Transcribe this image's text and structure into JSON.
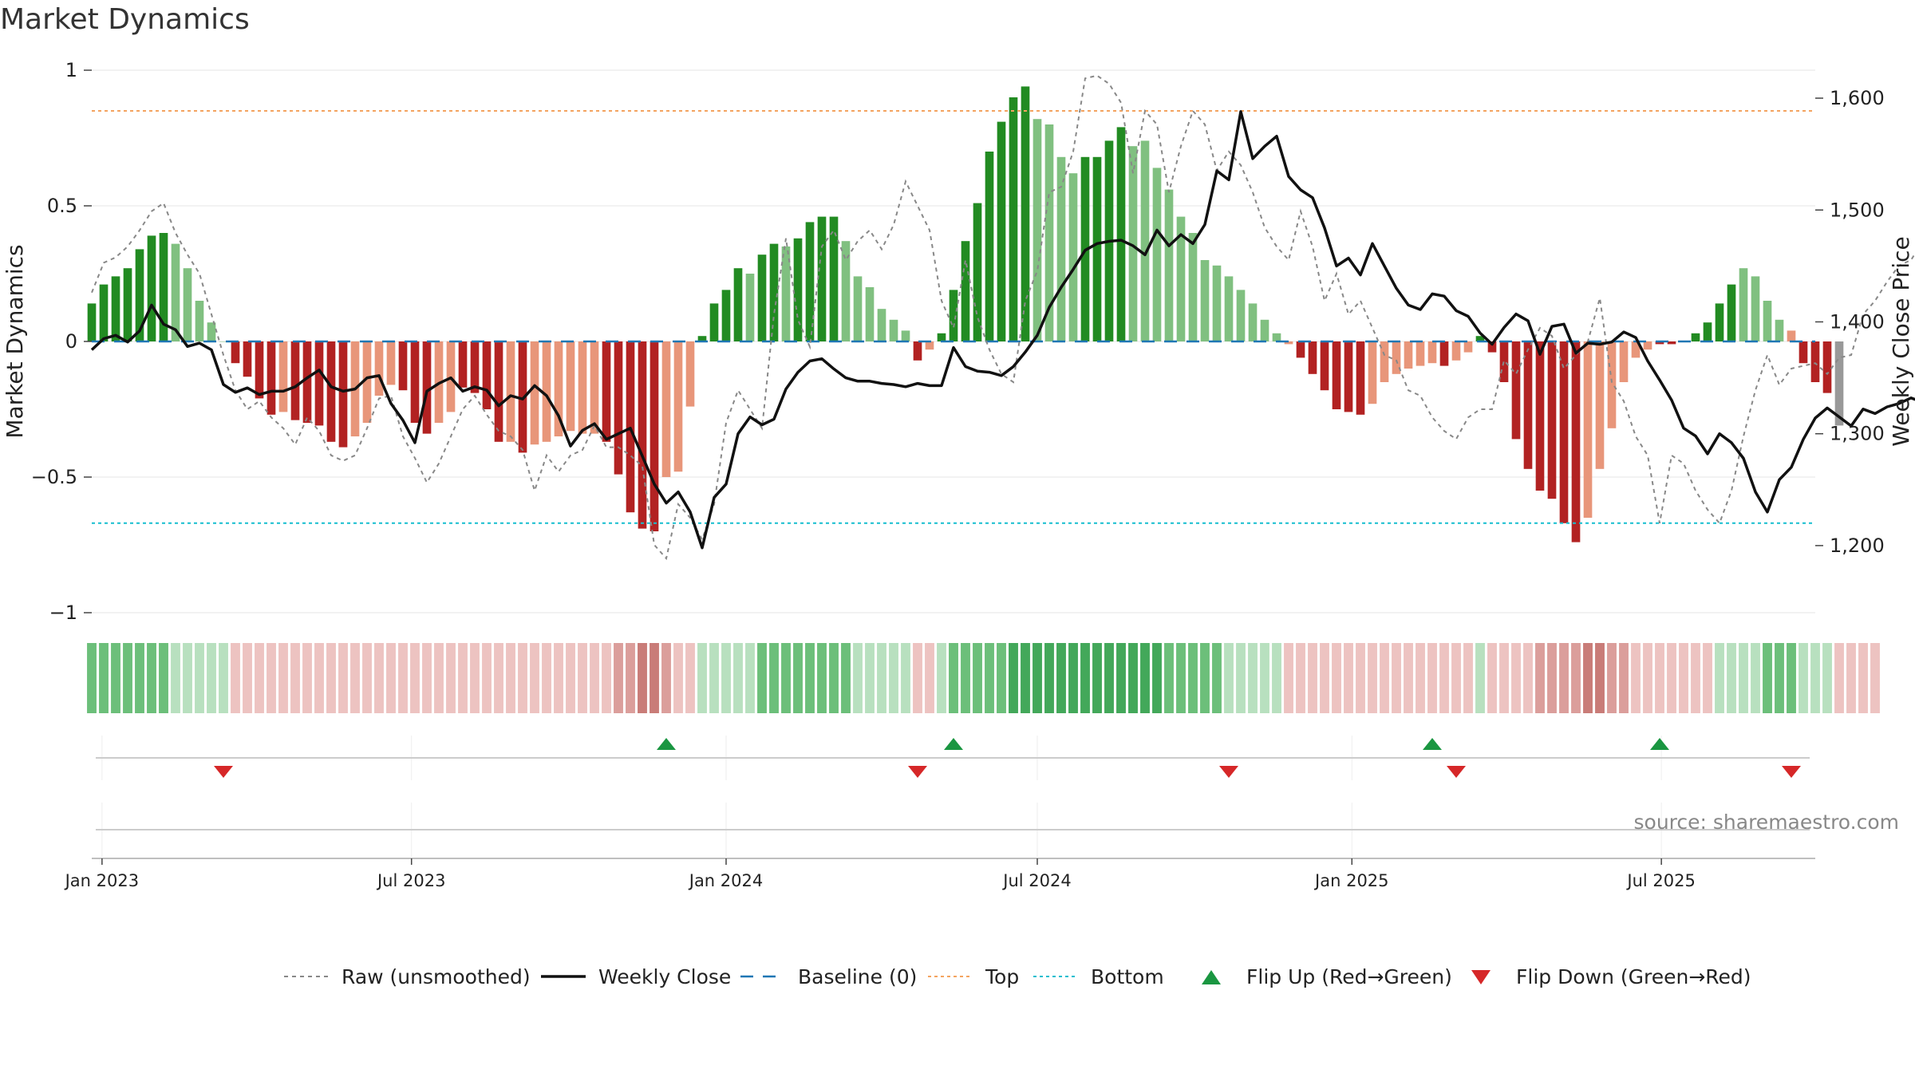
{
  "title": "Market Dynamics",
  "source": "source: sharemaestro.com",
  "colors": {
    "strong_green": "#228B22",
    "light_green": "#80C080",
    "strong_red": "#B22222",
    "light_red": "#E8967A",
    "price_line": "#111111",
    "raw_line": "#888888",
    "baseline": "#1F77B4",
    "top": "#F4A460",
    "bottom": "#17BECF",
    "flip_up": "#1A9641",
    "flip_down": "#D62728"
  },
  "chart_data": {
    "type": "bar",
    "title": "Market Dynamics",
    "ylabel": "Market Dynamics",
    "y2label": "Weekly Close Price",
    "ylim": [
      -1,
      1
    ],
    "y2lim": [
      1140,
      1625
    ],
    "yticks": [
      1,
      0.5,
      0,
      -0.5,
      -1
    ],
    "ytick_labels": [
      "1",
      "0.5",
      "0",
      "−0.5",
      "−1"
    ],
    "y2ticks": [
      1600,
      1500,
      1400,
      1300,
      1200
    ],
    "y2tick_labels": [
      "1,600",
      "1,500",
      "1,400",
      "1,300",
      "1,200"
    ],
    "x_start": "2022-12-26",
    "x_end": "2025-09-29",
    "xticks": [
      "2023-01-01",
      "2023-07-01",
      "2024-01-01",
      "2024-07-01",
      "2025-01-01",
      "2025-07-01"
    ],
    "xtick_labels": [
      "Jan 2023",
      "Jul 2023",
      "Jan 2024",
      "Jul 2024",
      "Jan 2025",
      "Jul 2025"
    ],
    "top_level": 0.85,
    "bottom_level": -0.67,
    "baseline": 0,
    "grid": true,
    "legend_position": "bottom-center",
    "series": [
      {
        "name": "Raw (unsmoothed)",
        "values": [
          0.18,
          0.29,
          0.31,
          0.35,
          0.41,
          0.48,
          0.51,
          0.4,
          0.32,
          0.25,
          0.1,
          -0.05,
          -0.18,
          -0.25,
          -0.22,
          -0.28,
          -0.32,
          -0.38,
          -0.28,
          -0.33,
          -0.42,
          -0.44,
          -0.42,
          -0.32,
          -0.21,
          -0.2,
          -0.35,
          -0.43,
          -0.52,
          -0.45,
          -0.35,
          -0.25,
          -0.2,
          -0.27,
          -0.33,
          -0.35,
          -0.4,
          -0.55,
          -0.42,
          -0.48,
          -0.42,
          -0.4,
          -0.31,
          -0.39,
          -0.39,
          -0.42,
          -0.46,
          -0.75,
          -0.8,
          -0.6,
          -0.65,
          -0.73,
          -0.6,
          -0.3,
          -0.18,
          -0.25,
          -0.32,
          0.1,
          0.38,
          0.08,
          -0.02,
          0.35,
          0.41,
          0.3,
          0.37,
          0.41,
          0.34,
          0.43,
          0.59,
          0.5,
          0.41,
          0.15,
          0.05,
          0.3,
          0.09,
          -0.03,
          -0.12,
          -0.15,
          0.15,
          0.26,
          0.55,
          0.57,
          0.7,
          0.97,
          0.98,
          0.95,
          0.88,
          0.62,
          0.85,
          0.8,
          0.55,
          0.72,
          0.85,
          0.8,
          0.63,
          0.7,
          0.65,
          0.55,
          0.42,
          0.35,
          0.3,
          0.48,
          0.35,
          0.15,
          0.25,
          0.1,
          0.15,
          0.05,
          -0.05,
          -0.07,
          -0.18,
          -0.2,
          -0.28,
          -0.33,
          -0.36,
          -0.28,
          -0.25,
          -0.25,
          -0.07,
          -0.12,
          -0.03,
          0.05,
          0.02,
          -0.1,
          -0.05,
          0.0,
          0.16,
          -0.15,
          -0.22,
          -0.35,
          -0.42,
          -0.67,
          -0.42,
          -0.45,
          -0.55,
          -0.62,
          -0.67,
          -0.55,
          -0.35,
          -0.18,
          -0.05,
          -0.16,
          -0.1,
          -0.09,
          -0.08,
          -0.12,
          -0.06,
          -0.05,
          0.1,
          0.15,
          0.22,
          0.28,
          0.3,
          0.37,
          0.2,
          0.09,
          -0.08,
          0.05,
          -0.2,
          -0.27,
          -0.38,
          -0.3,
          -0.25
        ]
      },
      {
        "name": "Weekly Close",
        "values": [
          1375,
          1385,
          1388,
          1382,
          1392,
          1415,
          1398,
          1393,
          1378,
          1381,
          1375,
          1344,
          1337,
          1341,
          1335,
          1338,
          1338,
          1342,
          1350,
          1357,
          1342,
          1338,
          1340,
          1350,
          1352,
          1327,
          1312,
          1292,
          1338,
          1345,
          1350,
          1338,
          1342,
          1339,
          1325,
          1334,
          1331,
          1343,
          1334,
          1316,
          1289,
          1303,
          1309,
          1295,
          1300,
          1305,
          1280,
          1255,
          1238,
          1248,
          1230,
          1198,
          1243,
          1255,
          1300,
          1315,
          1308,
          1313,
          1340,
          1355,
          1365,
          1367,
          1358,
          1350,
          1347,
          1347,
          1345,
          1344,
          1342,
          1345,
          1343,
          1343,
          1377,
          1360,
          1356,
          1355,
          1352,
          1360,
          1373,
          1388,
          1413,
          1431,
          1447,
          1464,
          1470,
          1472,
          1473,
          1468,
          1460,
          1482,
          1468,
          1478,
          1470,
          1487,
          1535,
          1527,
          1588,
          1546,
          1557,
          1566,
          1530,
          1518,
          1511,
          1484,
          1450,
          1457,
          1442,
          1470,
          1450,
          1430,
          1415,
          1411,
          1425,
          1423,
          1410,
          1405,
          1390,
          1380,
          1395,
          1407,
          1401,
          1371,
          1396,
          1398,
          1372,
          1381,
          1380,
          1382,
          1391,
          1386,
          1365,
          1348,
          1330,
          1305,
          1298,
          1282,
          1300,
          1292,
          1278,
          1248,
          1230,
          1259,
          1270,
          1295,
          1314,
          1323,
          1315,
          1307,
          1322,
          1318,
          1324,
          1327,
          1332,
          1328,
          1335,
          1327,
          1330,
          1328,
          1337,
          1340,
          1338,
          1335,
          1339,
          1339,
          1331,
          1328,
          1335,
          1321
        ]
      },
      {
        "name": "Baseline (0)",
        "values": [
          0
        ]
      },
      {
        "name": "Top",
        "values": [
          0.85
        ]
      },
      {
        "name": "Bottom",
        "values": [
          -0.67
        ]
      },
      {
        "name": "Flip Up (Red→Green)",
        "x": [
          "2023-11-27",
          "2024-05-13",
          "2025-02-17",
          "2025-06-30"
        ]
      },
      {
        "name": "Flip Down (Green→Red)",
        "x": [
          "2023-03-13",
          "2024-04-22",
          "2024-10-21",
          "2025-03-03",
          "2025-09-15"
        ]
      }
    ],
    "bars": [
      0.14,
      0.21,
      0.24,
      0.27,
      0.34,
      0.39,
      0.4,
      0.36,
      0.27,
      0.15,
      0.07,
      0.0,
      -0.08,
      -0.13,
      -0.21,
      -0.27,
      -0.26,
      -0.29,
      -0.3,
      -0.31,
      -0.37,
      -0.39,
      -0.35,
      -0.3,
      -0.2,
      -0.16,
      -0.18,
      -0.3,
      -0.34,
      -0.3,
      -0.26,
      -0.17,
      -0.19,
      -0.25,
      -0.37,
      -0.37,
      -0.41,
      -0.38,
      -0.37,
      -0.35,
      -0.33,
      -0.34,
      -0.34,
      -0.37,
      -0.49,
      -0.63,
      -0.69,
      -0.7,
      -0.5,
      -0.48,
      -0.24,
      0.02,
      0.14,
      0.19,
      0.27,
      0.25,
      0.32,
      0.36,
      0.35,
      0.38,
      0.44,
      0.46,
      0.46,
      0.37,
      0.24,
      0.2,
      0.12,
      0.08,
      0.04,
      -0.07,
      -0.03,
      0.03,
      0.19,
      0.37,
      0.51,
      0.7,
      0.81,
      0.9,
      0.94,
      0.82,
      0.8,
      0.68,
      0.62,
      0.68,
      0.68,
      0.74,
      0.79,
      0.72,
      0.74,
      0.64,
      0.56,
      0.46,
      0.4,
      0.3,
      0.28,
      0.24,
      0.19,
      0.14,
      0.08,
      0.03,
      -0.01,
      -0.06,
      -0.12,
      -0.18,
      -0.25,
      -0.26,
      -0.27,
      -0.23,
      -0.15,
      -0.12,
      -0.1,
      -0.09,
      -0.08,
      -0.09,
      -0.07,
      -0.04,
      0.02,
      -0.04,
      -0.15,
      -0.36,
      -0.47,
      -0.55,
      -0.58,
      -0.67,
      -0.74,
      -0.65,
      -0.47,
      -0.32,
      -0.15,
      -0.06,
      -0.03,
      -0.01,
      -0.01,
      0.0,
      0.03,
      0.07,
      0.14,
      0.21,
      0.27,
      0.24,
      0.15,
      0.08,
      0.04,
      -0.08,
      -0.15,
      -0.19,
      -0.31
    ],
    "bar_colors": [
      "strong_green",
      "strong_green",
      "strong_green",
      "strong_green",
      "strong_green",
      "strong_green",
      "strong_green",
      "light_green",
      "light_green",
      "light_green",
      "light_green",
      "light_green",
      "strong_red",
      "strong_red",
      "strong_red",
      "strong_red",
      "light_red",
      "strong_red",
      "strong_red",
      "strong_red",
      "strong_red",
      "strong_red",
      "light_red",
      "light_red",
      "light_red",
      "light_red",
      "strong_red",
      "strong_red",
      "strong_red",
      "light_red",
      "light_red",
      "strong_red",
      "strong_red",
      "strong_red",
      "strong_red",
      "light_red",
      "strong_red",
      "light_red",
      "light_red",
      "light_red",
      "light_red",
      "light_red",
      "light_red",
      "strong_red",
      "strong_red",
      "strong_red",
      "strong_red",
      "strong_red",
      "light_red",
      "light_red",
      "light_red",
      "strong_green",
      "strong_green",
      "strong_green",
      "strong_green",
      "light_green",
      "strong_green",
      "strong_green",
      "light_green",
      "strong_green",
      "strong_green",
      "strong_green",
      "strong_green",
      "light_green",
      "light_green",
      "light_green",
      "light_green",
      "light_green",
      "light_green",
      "strong_red",
      "light_red",
      "strong_green",
      "strong_green",
      "strong_green",
      "strong_green",
      "strong_green",
      "strong_green",
      "strong_green",
      "strong_green",
      "light_green",
      "light_green",
      "light_green",
      "light_green",
      "strong_green",
      "strong_green",
      "strong_green",
      "strong_green",
      "light_green",
      "light_green",
      "light_green",
      "light_green",
      "light_green",
      "light_green",
      "light_green",
      "light_green",
      "light_green",
      "light_green",
      "light_green",
      "light_green",
      "light_green",
      "light_red",
      "strong_red",
      "strong_red",
      "strong_red",
      "strong_red",
      "strong_red",
      "strong_red",
      "light_red",
      "light_red",
      "light_red",
      "light_red",
      "light_red",
      "light_red",
      "strong_red",
      "light_red",
      "light_red",
      "strong_green",
      "strong_red",
      "strong_red",
      "strong_red",
      "strong_red",
      "strong_red",
      "strong_red",
      "strong_red",
      "strong_red",
      "light_red",
      "light_red",
      "light_red",
      "light_red",
      "light_red",
      "light_red",
      "strong_red",
      "strong_red",
      "strong_green",
      "strong_green",
      "strong_green",
      "strong_green",
      "strong_green",
      "light_green",
      "light_green",
      "light_green",
      "light_green",
      "light_red",
      "strong_red",
      "strong_red",
      "strong_red"
    ],
    "regime_strip": [
      2,
      2,
      2,
      2,
      2,
      2,
      2,
      1,
      1,
      1,
      1,
      1,
      -1,
      -1,
      -1,
      -1,
      -1,
      -1,
      -1,
      -1,
      -1,
      -1,
      -1,
      -1,
      -1,
      -1,
      -1,
      -1,
      -1,
      -1,
      -1,
      -1,
      -1,
      -1,
      -1,
      -1,
      -1,
      -1,
      -1,
      -1,
      -1,
      -1,
      -1,
      -1,
      -2,
      -2,
      -3,
      -3,
      -2,
      -1,
      -1,
      1,
      1,
      1,
      1,
      1,
      2,
      2,
      2,
      2,
      2,
      2,
      2,
      2,
      1,
      1,
      1,
      1,
      1,
      -1,
      -1,
      1,
      2,
      2,
      2,
      2,
      2,
      3,
      3,
      3,
      3,
      3,
      3,
      3,
      3,
      3,
      3,
      3,
      3,
      3,
      2,
      2,
      2,
      2,
      2,
      1,
      1,
      1,
      1,
      1,
      -1,
      -1,
      -1,
      -1,
      -1,
      -1,
      -1,
      -1,
      -1,
      -1,
      -1,
      -1,
      -1,
      -1,
      -1,
      -1,
      1,
      -1,
      -1,
      -1,
      -1,
      -2,
      -2,
      -2,
      -2,
      -3,
      -3,
      -2,
      -2,
      -1,
      -1,
      -1,
      -1,
      -1,
      -1,
      -1,
      1,
      1,
      1,
      1,
      2,
      2,
      2,
      1,
      1,
      1,
      -1,
      -1,
      -1,
      -1
    ]
  }
}
